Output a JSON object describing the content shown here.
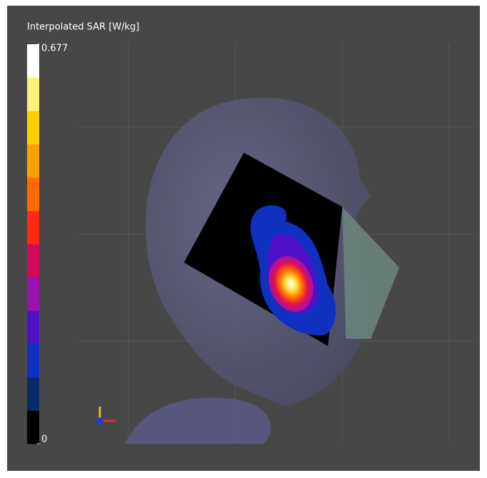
{
  "colorbar": {
    "title": "Interpolated SAR [W/kg]",
    "lim": [
      0,
      0.677
    ],
    "ticks": [
      0,
      0.677
    ],
    "colors": [
      "#000000",
      "#0a2a6a",
      "#1030c0",
      "#5010c8",
      "#9a10b0",
      "#d00a5a",
      "#ff2a10",
      "#ff6a00",
      "#ffa000",
      "#ffd000",
      "#fff07a",
      "#ffffff"
    ]
  }
}
